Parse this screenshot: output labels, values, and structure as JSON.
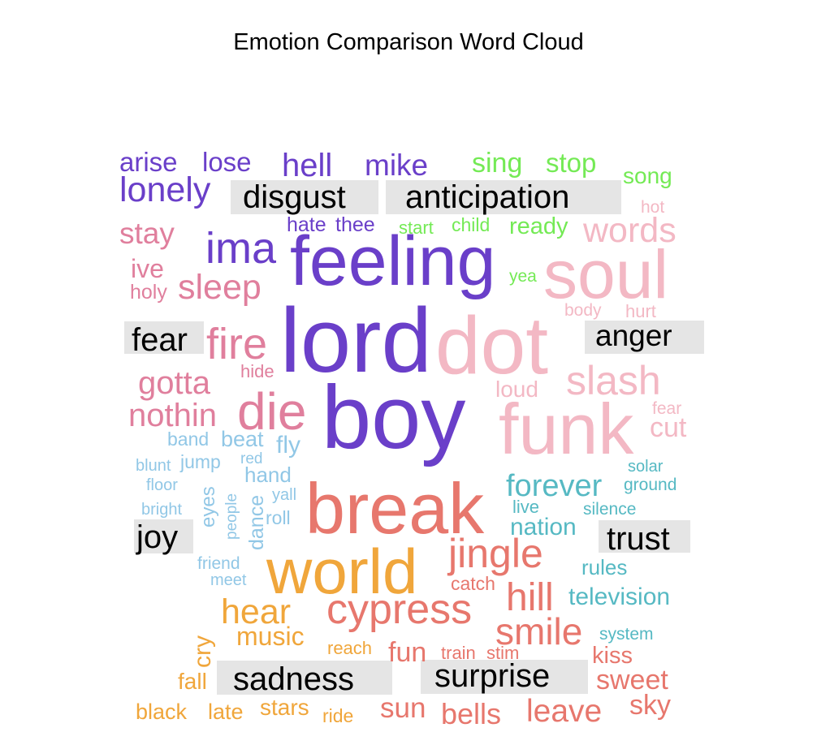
{
  "chart_data": {
    "type": "wordcloud",
    "title": "Emotion Comparison Word Cloud",
    "colors": {
      "disgust": "#6a3fc9",
      "anticipation": "#74ea55",
      "anger": "#f3b8c4",
      "fear": "#e07f9d",
      "joy": "#91c7e6",
      "trust": "#56b9c3",
      "sadness": "#f0a63b",
      "surprise": "#e7776d"
    },
    "labels": [
      "disgust",
      "anticipation",
      "fear",
      "anger",
      "joy",
      "trust",
      "sadness",
      "surprise"
    ],
    "words": [
      {
        "text": "arise",
        "group": "disgust"
      },
      {
        "text": "lose",
        "group": "disgust"
      },
      {
        "text": "hell",
        "group": "disgust"
      },
      {
        "text": "mike",
        "group": "disgust"
      },
      {
        "text": "lonely",
        "group": "disgust"
      },
      {
        "text": "hate",
        "group": "disgust"
      },
      {
        "text": "thee",
        "group": "disgust"
      },
      {
        "text": "ima",
        "group": "disgust"
      },
      {
        "text": "feeling",
        "group": "disgust"
      },
      {
        "text": "lord",
        "group": "disgust"
      },
      {
        "text": "boy",
        "group": "disgust"
      },
      {
        "text": "sing",
        "group": "anticipation"
      },
      {
        "text": "stop",
        "group": "anticipation"
      },
      {
        "text": "song",
        "group": "anticipation"
      },
      {
        "text": "start",
        "group": "anticipation"
      },
      {
        "text": "child",
        "group": "anticipation"
      },
      {
        "text": "ready",
        "group": "anticipation"
      },
      {
        "text": "yea",
        "group": "anticipation"
      },
      {
        "text": "hot",
        "group": "anger"
      },
      {
        "text": "words",
        "group": "anger"
      },
      {
        "text": "soul",
        "group": "anger"
      },
      {
        "text": "body",
        "group": "anger"
      },
      {
        "text": "hurt",
        "group": "anger"
      },
      {
        "text": "dot",
        "group": "anger"
      },
      {
        "text": "slash",
        "group": "anger"
      },
      {
        "text": "loud",
        "group": "anger"
      },
      {
        "text": "fear",
        "group": "anger"
      },
      {
        "text": "funk",
        "group": "anger"
      },
      {
        "text": "cut",
        "group": "anger"
      },
      {
        "text": "stay",
        "group": "fear"
      },
      {
        "text": "ive",
        "group": "fear"
      },
      {
        "text": "holy",
        "group": "fear"
      },
      {
        "text": "sleep",
        "group": "fear"
      },
      {
        "text": "fire",
        "group": "fear"
      },
      {
        "text": "gotta",
        "group": "fear"
      },
      {
        "text": "hide",
        "group": "fear"
      },
      {
        "text": "nothin",
        "group": "fear"
      },
      {
        "text": "die",
        "group": "fear"
      },
      {
        "text": "band",
        "group": "joy"
      },
      {
        "text": "beat",
        "group": "joy"
      },
      {
        "text": "fly",
        "group": "joy"
      },
      {
        "text": "blunt",
        "group": "joy"
      },
      {
        "text": "jump",
        "group": "joy"
      },
      {
        "text": "red",
        "group": "joy"
      },
      {
        "text": "hand",
        "group": "joy"
      },
      {
        "text": "floor",
        "group": "joy"
      },
      {
        "text": "yall",
        "group": "joy"
      },
      {
        "text": "bright",
        "group": "joy"
      },
      {
        "text": "eyes",
        "group": "joy"
      },
      {
        "text": "people",
        "group": "joy"
      },
      {
        "text": "dance",
        "group": "joy"
      },
      {
        "text": "roll",
        "group": "joy"
      },
      {
        "text": "friend",
        "group": "joy"
      },
      {
        "text": "meet",
        "group": "joy"
      },
      {
        "text": "forever",
        "group": "trust"
      },
      {
        "text": "solar",
        "group": "trust"
      },
      {
        "text": "ground",
        "group": "trust"
      },
      {
        "text": "live",
        "group": "trust"
      },
      {
        "text": "silence",
        "group": "trust"
      },
      {
        "text": "nation",
        "group": "trust"
      },
      {
        "text": "rules",
        "group": "trust"
      },
      {
        "text": "television",
        "group": "trust"
      },
      {
        "text": "system",
        "group": "trust"
      },
      {
        "text": "world",
        "group": "sadness"
      },
      {
        "text": "hear",
        "group": "sadness"
      },
      {
        "text": "music",
        "group": "sadness"
      },
      {
        "text": "cry",
        "group": "sadness"
      },
      {
        "text": "reach",
        "group": "sadness"
      },
      {
        "text": "fall",
        "group": "sadness"
      },
      {
        "text": "black",
        "group": "sadness"
      },
      {
        "text": "late",
        "group": "sadness"
      },
      {
        "text": "stars",
        "group": "sadness"
      },
      {
        "text": "ride",
        "group": "sadness"
      },
      {
        "text": "break",
        "group": "surprise"
      },
      {
        "text": "jingle",
        "group": "surprise"
      },
      {
        "text": "catch",
        "group": "surprise"
      },
      {
        "text": "hill",
        "group": "surprise"
      },
      {
        "text": "cypress",
        "group": "surprise"
      },
      {
        "text": "smile",
        "group": "surprise"
      },
      {
        "text": "fun",
        "group": "surprise"
      },
      {
        "text": "train",
        "group": "surprise"
      },
      {
        "text": "stim",
        "group": "surprise"
      },
      {
        "text": "kiss",
        "group": "surprise"
      },
      {
        "text": "sweet",
        "group": "surprise"
      },
      {
        "text": "sky",
        "group": "surprise"
      },
      {
        "text": "sun",
        "group": "surprise"
      },
      {
        "text": "bells",
        "group": "surprise"
      },
      {
        "text": "leave",
        "group": "surprise"
      }
    ]
  }
}
